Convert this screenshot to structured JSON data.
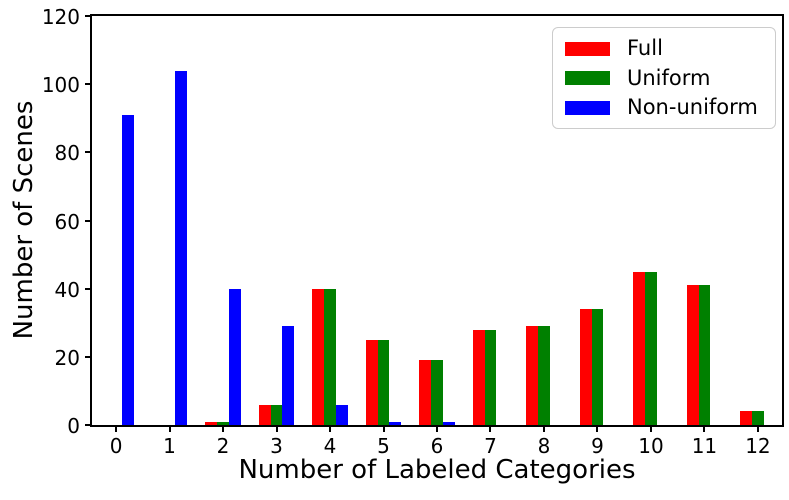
{
  "chart_data": {
    "type": "bar",
    "title": "",
    "xlabel": "Number of Labeled Categories",
    "ylabel": "Number of Scenes",
    "categories": [
      0,
      1,
      2,
      3,
      4,
      5,
      6,
      7,
      8,
      9,
      10,
      11,
      12
    ],
    "series": [
      {
        "name": "Full",
        "color": "#ff0000",
        "values": [
          0,
          0,
          1,
          6,
          40,
          25,
          19,
          28,
          29,
          34,
          45,
          41,
          4
        ]
      },
      {
        "name": "Uniform",
        "color": "#008000",
        "values": [
          0,
          0,
          1,
          6,
          40,
          25,
          19,
          28,
          29,
          34,
          45,
          41,
          4
        ]
      },
      {
        "name": "Non-uniform",
        "color": "#0000ff",
        "values": [
          91,
          104,
          40,
          29,
          6,
          1,
          1,
          0,
          0,
          0,
          0,
          0,
          0
        ]
      }
    ],
    "yticks": [
      0,
      20,
      40,
      60,
      80,
      100,
      120
    ],
    "ylim": [
      0,
      120
    ],
    "xlim": [
      -0.45,
      12.45
    ],
    "grid": false,
    "legend_position": "upper right"
  },
  "colors": {
    "axis": "#000000",
    "background": "#ffffff",
    "legend_border": "#cccccc"
  }
}
